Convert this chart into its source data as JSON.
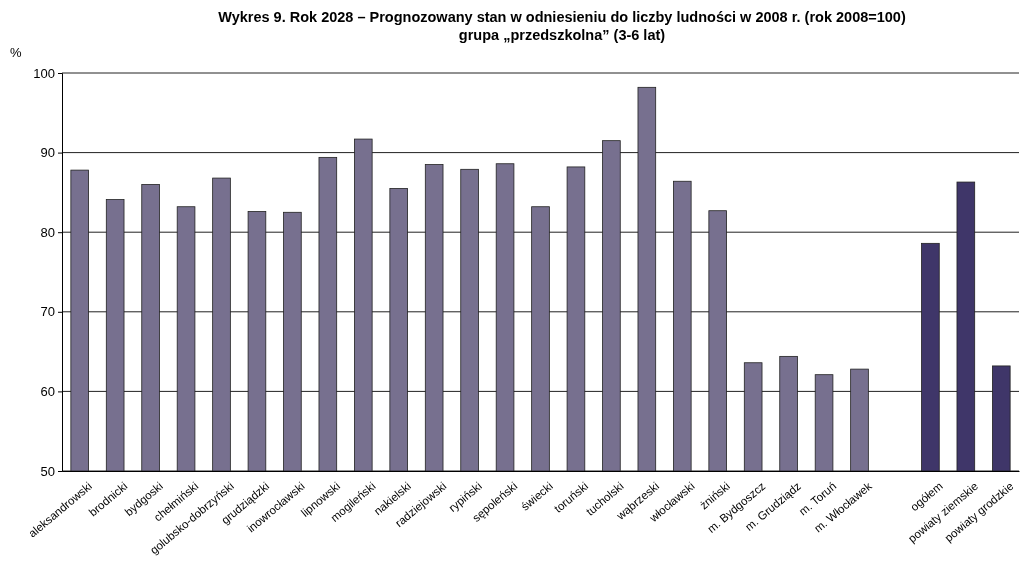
{
  "chart_data": {
    "type": "bar",
    "title": "Wykres 9. Rok 2028 – Prognozowany stan w odniesieniu do liczby ludności w 2008 r. (rok 2008=100)",
    "subtitle": "grupa „przedszkolna” (3-6 lat)",
    "ylabel": "%",
    "categories": [
      "aleksandrowski",
      "brodnicki",
      "bydgoski",
      "chełmiński",
      "golubsko-dobrzyński",
      "grudziądzki",
      "inowrocławski",
      "lipnowski",
      "mogileński",
      "nakielski",
      "radziejowski",
      "rypiński",
      "sępoleński",
      "świecki",
      "toruński",
      "tucholski",
      "wąbrzeski",
      "włocławski",
      "żniński",
      "m. Bydgoszcz",
      "m. Grudziądz",
      "m. Toruń",
      "m. Włocławek",
      null,
      "ogółem",
      "powiaty ziemskie",
      "powiaty grodzkie"
    ],
    "values": [
      87.8,
      84.1,
      86.0,
      83.2,
      86.8,
      82.6,
      82.5,
      89.4,
      91.7,
      85.5,
      88.5,
      87.9,
      88.6,
      83.2,
      88.2,
      91.5,
      98.2,
      86.4,
      82.7,
      63.6,
      64.4,
      62.1,
      62.8,
      null,
      78.6,
      86.3,
      63.2
    ],
    "colors": [
      "#77708f",
      "#77708f",
      "#77708f",
      "#77708f",
      "#77708f",
      "#77708f",
      "#77708f",
      "#77708f",
      "#77708f",
      "#77708f",
      "#77708f",
      "#77708f",
      "#77708f",
      "#77708f",
      "#77708f",
      "#77708f",
      "#77708f",
      "#77708f",
      "#77708f",
      "#77708f",
      "#77708f",
      "#77708f",
      "#77708f",
      null,
      "#3f3669",
      "#3f3669",
      "#3f3669"
    ],
    "ylim": [
      50,
      100
    ],
    "yticks": [
      50,
      60,
      70,
      80,
      90,
      100
    ],
    "grid": "y"
  }
}
